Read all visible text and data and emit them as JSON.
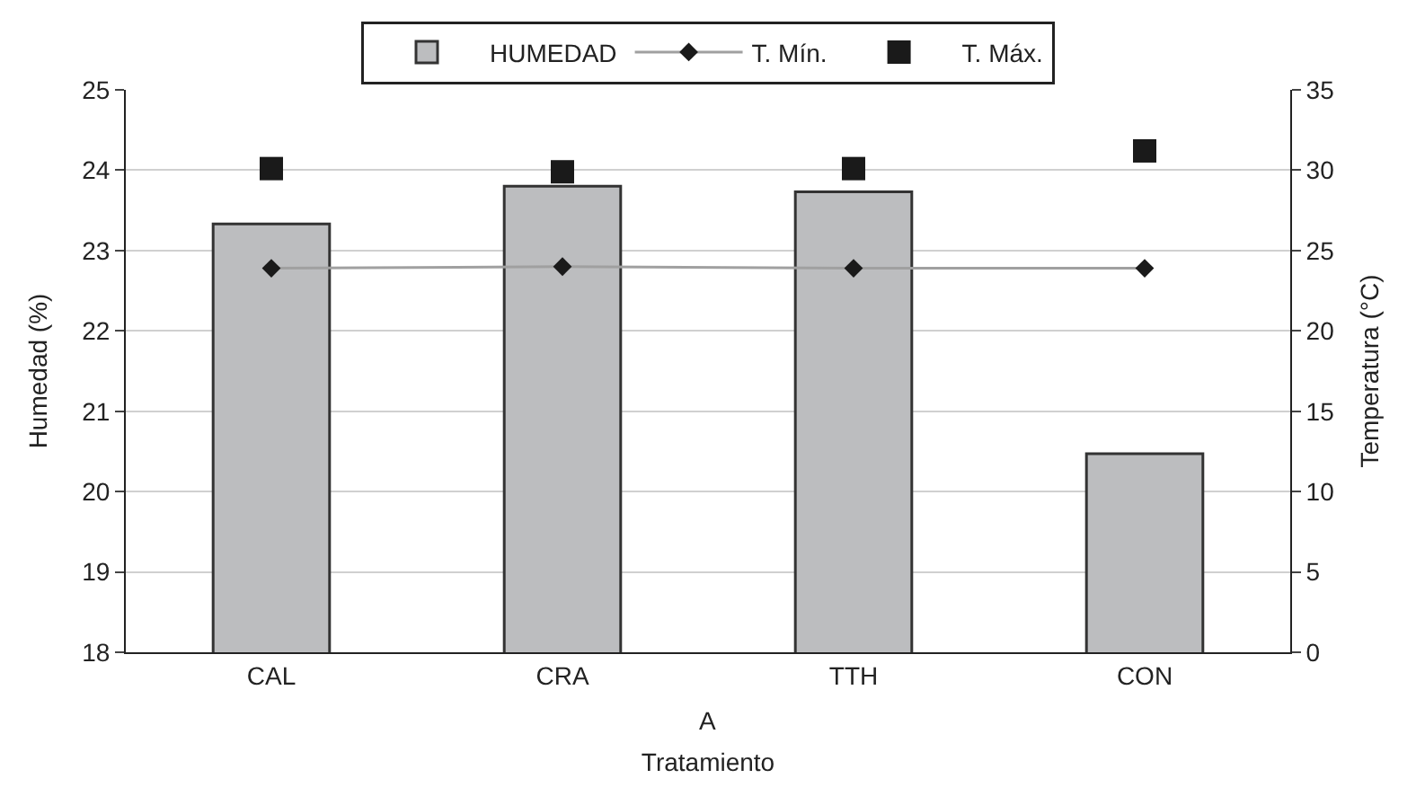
{
  "chart_data": {
    "type": "bar",
    "categories": [
      "CAL",
      "CRA",
      "TTH",
      "CON"
    ],
    "xlabel": "Tratamiento",
    "ylabel": "Humedad (%)",
    "y2label": "Temperatura (°C)",
    "annotations": [
      "A"
    ],
    "series": [
      {
        "name": "HUMEDAD",
        "color": "#bcbdbf",
        "values": [
          23.33,
          23.8,
          23.73,
          20.47
        ]
      },
      {
        "name": "T. Mín.",
        "type": "line",
        "color": "#1a1a1a",
        "axis": "y2",
        "marker": "diamond",
        "values": [
          23.9,
          24.0,
          23.9,
          23.9
        ]
      },
      {
        "name": "T. Máx.",
        "type": "scatter",
        "color": "#1a1a1a",
        "axis": "y2",
        "marker": "square",
        "values": [
          30.1,
          29.9,
          30.1,
          31.2
        ]
      }
    ],
    "ylim": [
      18,
      25
    ],
    "yticks": [
      18,
      19,
      20,
      21,
      22,
      23,
      24,
      25
    ],
    "y2lim": [
      0,
      35
    ],
    "y2ticks": [
      0,
      5,
      10,
      15,
      20,
      25,
      30,
      35
    ],
    "grid": "y",
    "legend": "top"
  }
}
